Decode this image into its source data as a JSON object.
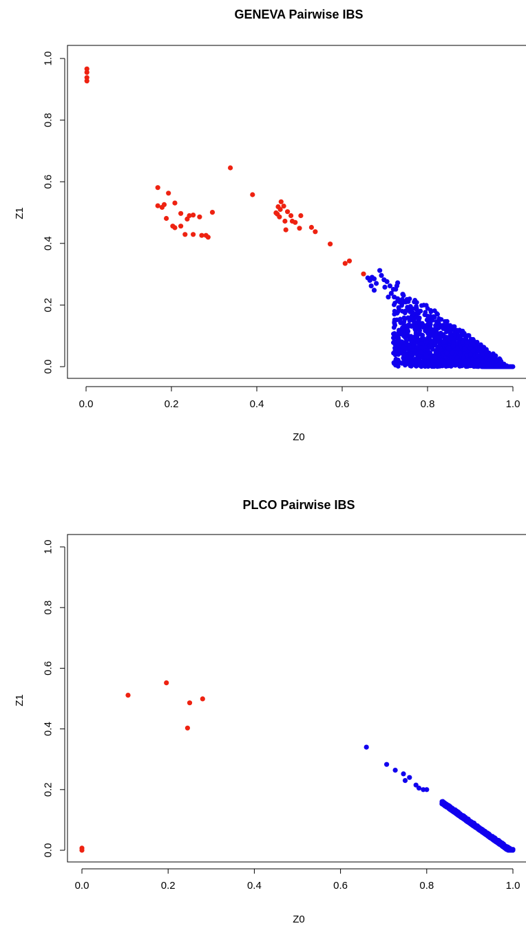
{
  "chart_data": [
    {
      "type": "scatter",
      "title": "GENEVA Pairwise IBS",
      "xlabel": "Z0",
      "ylabel": "Z1",
      "xlim": [
        0.0,
        1.0
      ],
      "ylim": [
        0.0,
        1.0
      ],
      "xticks": [
        "0.0",
        "0.2",
        "0.4",
        "0.6",
        "0.8",
        "1.0"
      ],
      "yticks": [
        "0.0",
        "0.2",
        "0.4",
        "0.6",
        "0.8",
        "1.0"
      ],
      "grid": false,
      "legend": "none",
      "colors": {
        "related": "#ee2211",
        "unrelated": "#1100ee"
      },
      "series": [
        {
          "color": "related",
          "points": [
            [
              0.002,
              0.966
            ],
            [
              0.002,
              0.955
            ],
            [
              0.002,
              0.938
            ],
            [
              0.002,
              0.927
            ],
            [
              0.168,
              0.581
            ],
            [
              0.168,
              0.522
            ],
            [
              0.178,
              0.517
            ],
            [
              0.183,
              0.526
            ],
            [
              0.188,
              0.481
            ],
            [
              0.193,
              0.563
            ],
            [
              0.203,
              0.456
            ],
            [
              0.208,
              0.451
            ],
            [
              0.208,
              0.531
            ],
            [
              0.222,
              0.456
            ],
            [
              0.222,
              0.497
            ],
            [
              0.232,
              0.429
            ],
            [
              0.237,
              0.479
            ],
            [
              0.242,
              0.49
            ],
            [
              0.251,
              0.429
            ],
            [
              0.251,
              0.492
            ],
            [
              0.266,
              0.486
            ],
            [
              0.271,
              0.426
            ],
            [
              0.281,
              0.426
            ],
            [
              0.286,
              0.42
            ],
            [
              0.296,
              0.501
            ],
            [
              0.338,
              0.645
            ],
            [
              0.39,
              0.558
            ],
            [
              0.445,
              0.499
            ],
            [
              0.448,
              0.495
            ],
            [
              0.45,
              0.519
            ],
            [
              0.453,
              0.486
            ],
            [
              0.455,
              0.51
            ],
            [
              0.457,
              0.535
            ],
            [
              0.463,
              0.521
            ],
            [
              0.466,
              0.472
            ],
            [
              0.468,
              0.444
            ],
            [
              0.472,
              0.503
            ],
            [
              0.48,
              0.49
            ],
            [
              0.483,
              0.472
            ],
            [
              0.49,
              0.468
            ],
            [
              0.5,
              0.449
            ],
            [
              0.503,
              0.49
            ],
            [
              0.528,
              0.452
            ],
            [
              0.537,
              0.438
            ],
            [
              0.572,
              0.398
            ],
            [
              0.607,
              0.335
            ],
            [
              0.617,
              0.343
            ],
            [
              0.65,
              0.301
            ]
          ]
        },
        {
          "color": "unrelated",
          "band": {
            "x_start": 0.72,
            "x_end": 1.0,
            "top_start": 0.28,
            "bottom_start": 0.0,
            "spread": 0.08
          },
          "points": [
            [
              0.66,
              0.288
            ],
            [
              0.665,
              0.28
            ],
            [
              0.67,
              0.29
            ],
            [
              0.675,
              0.285
            ],
            [
              0.668,
              0.262
            ],
            [
              0.675,
              0.248
            ],
            [
              0.68,
              0.27
            ],
            [
              0.688,
              0.312
            ],
            [
              0.692,
              0.296
            ],
            [
              0.698,
              0.282
            ],
            [
              0.7,
              0.258
            ],
            [
              0.705,
              0.276
            ],
            [
              0.708,
              0.226
            ],
            [
              0.712,
              0.262
            ],
            [
              0.715,
              0.238
            ],
            [
              0.72,
              0.251
            ],
            [
              0.722,
              0.226
            ],
            [
              0.728,
              0.262
            ],
            [
              0.73,
              0.272
            ],
            [
              0.735,
              0.21
            ],
            [
              0.74,
              0.205
            ],
            [
              0.742,
              0.235
            ],
            [
              0.748,
              0.18
            ],
            [
              0.752,
              0.218
            ],
            [
              0.758,
              0.15
            ],
            [
              0.76,
              0.195
            ],
            [
              0.765,
              0.175
            ],
            [
              0.775,
              0.16
            ],
            [
              0.782,
              0.14
            ],
            [
              0.79,
              0.128
            ],
            [
              0.8,
              0.118
            ],
            [
              0.812,
              0.115
            ],
            [
              0.822,
              0.092
            ],
            [
              0.828,
              0.003
            ],
            [
              0.838,
              0.08
            ],
            [
              0.848,
              0.06
            ],
            [
              0.858,
              0.045
            ],
            [
              0.868,
              0.02
            ],
            [
              0.878,
              0.003
            ],
            [
              0.9,
              0.003
            ],
            [
              0.93,
              0.003
            ],
            [
              0.96,
              0.003
            ],
            [
              0.985,
              0.003
            ]
          ]
        }
      ]
    },
    {
      "type": "scatter",
      "title": "PLCO Pairwise IBS",
      "xlabel": "Z0",
      "ylabel": "Z1",
      "xlim": [
        0.0,
        1.0
      ],
      "ylim": [
        0.0,
        1.0
      ],
      "xticks": [
        "0.0",
        "0.2",
        "0.4",
        "0.6",
        "0.8",
        "1.0"
      ],
      "yticks": [
        "0.0",
        "0.2",
        "0.4",
        "0.6",
        "0.8",
        "1.0"
      ],
      "grid": false,
      "legend": "none",
      "colors": {
        "related": "#ee2211",
        "unrelated": "#1100ee"
      },
      "series": [
        {
          "color": "related",
          "points": [
            [
              0.0,
              0.007
            ],
            [
              0.0,
              0.0
            ],
            [
              0.107,
              0.511
            ],
            [
              0.196,
              0.552
            ],
            [
              0.245,
              0.403
            ],
            [
              0.25,
              0.486
            ],
            [
              0.28,
              0.499
            ]
          ]
        },
        {
          "color": "unrelated",
          "band": {
            "x_start": 0.835,
            "x_end": 1.0,
            "top_start": 0.165,
            "bottom_start": 0.155,
            "spread": 0.012
          },
          "points": [
            [
              0.66,
              0.34
            ],
            [
              0.707,
              0.283
            ],
            [
              0.727,
              0.264
            ],
            [
              0.746,
              0.252
            ],
            [
              0.75,
              0.23
            ],
            [
              0.76,
              0.24
            ],
            [
              0.775,
              0.215
            ],
            [
              0.782,
              0.205
            ],
            [
              0.792,
              0.2
            ],
            [
              0.8,
              0.2
            ],
            [
              0.995,
              0.003
            ],
            [
              0.985,
              0.003
            ],
            [
              1.0,
              0.003
            ]
          ]
        }
      ]
    }
  ]
}
